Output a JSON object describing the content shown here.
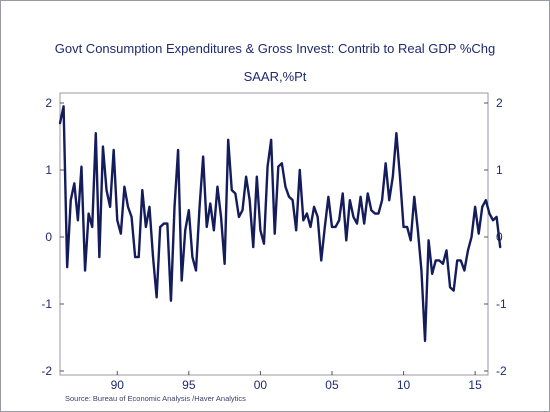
{
  "chart_data": {
    "type": "line",
    "title": "Govt Consumption Expenditures & Gross Invest: Contrib to Real GDP %Chg",
    "subtitle": "SAAR,%Pt",
    "source": "Source:  Bureau of Economic Analysis /Haver Analytics",
    "xlabel": "",
    "ylabel": "",
    "xlim": [
      1986.0,
      2015.9
    ],
    "ylim": [
      -2,
      2
    ],
    "x_ticks": [
      {
        "value": 1990,
        "label": "90"
      },
      {
        "value": 1995,
        "label": "95"
      },
      {
        "value": 2000,
        "label": "00"
      },
      {
        "value": 2005,
        "label": "05"
      },
      {
        "value": 2010,
        "label": "10"
      },
      {
        "value": 2015,
        "label": "15"
      }
    ],
    "y_ticks": [
      {
        "value": 2,
        "label": "2"
      },
      {
        "value": 1,
        "label": "1"
      },
      {
        "value": 0,
        "label": "0"
      },
      {
        "value": -1,
        "label": "-1"
      },
      {
        "value": -2,
        "label": "-2"
      }
    ],
    "grid": false,
    "line_color": "#141c5c",
    "series": [
      {
        "name": "",
        "x_start": 1986.0,
        "x_step": 0.25,
        "values": [
          1.7,
          1.95,
          -0.45,
          0.55,
          0.8,
          0.25,
          1.05,
          -0.5,
          0.35,
          0.15,
          1.55,
          -0.3,
          1.35,
          0.7,
          0.45,
          1.3,
          0.25,
          0.05,
          0.75,
          0.45,
          0.3,
          -0.3,
          -0.3,
          0.7,
          0.15,
          0.45,
          -0.3,
          -0.9,
          0.15,
          0.2,
          0.2,
          -0.95,
          0.45,
          1.3,
          -0.65,
          0.1,
          0.4,
          -0.3,
          -0.5,
          0.45,
          1.2,
          0.15,
          0.5,
          0.1,
          0.75,
          0.3,
          -0.4,
          1.45,
          0.7,
          0.65,
          0.3,
          0.4,
          0.9,
          0.55,
          -0.15,
          0.9,
          0.1,
          -0.1,
          1.05,
          1.45,
          0.05,
          1.05,
          1.1,
          0.75,
          0.6,
          0.55,
          0.1,
          1.0,
          0.25,
          0.35,
          0.15,
          0.45,
          0.3,
          -0.35,
          0.15,
          0.6,
          0.15,
          0.15,
          0.25,
          0.65,
          -0.05,
          0.55,
          0.3,
          0.2,
          0.6,
          0.2,
          0.65,
          0.4,
          0.35,
          0.35,
          0.55,
          1.1,
          0.55,
          0.9,
          1.55,
          0.9,
          0.15,
          0.15,
          -0.05,
          0.6,
          0.1,
          -0.5,
          -1.55,
          -0.05,
          -0.55,
          -0.35,
          -0.35,
          -0.4,
          -0.2,
          -0.75,
          -0.8,
          -0.35,
          -0.35,
          -0.5,
          -0.2,
          0.0,
          0.45,
          0.05,
          0.45,
          0.55,
          0.35,
          0.25,
          0.3,
          -0.15
        ]
      }
    ]
  }
}
